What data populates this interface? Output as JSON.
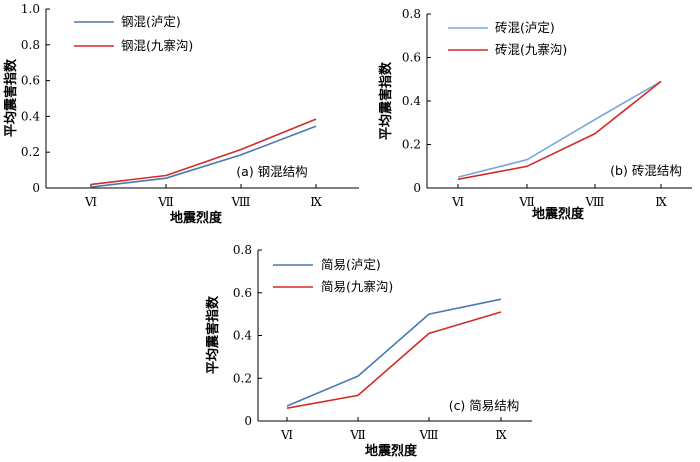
{
  "chart_data": [
    {
      "type": "line",
      "caption": "(a) 钢混结构",
      "xlabel": "地震烈度",
      "ylabel": "平均震害指数",
      "categories": [
        "Ⅵ",
        "Ⅶ",
        "Ⅷ",
        "Ⅸ"
      ],
      "ylim": [
        0,
        1.0
      ],
      "yticks": [
        "0",
        "0.2",
        "0.4",
        "0.6",
        "0.8",
        "1.0"
      ],
      "yticks_values": [
        0,
        0.2,
        0.4,
        0.6,
        0.8,
        1.0
      ],
      "legend_position": "top-left",
      "series": [
        {
          "name": "钢混(泸定)",
          "color": "#4a78b0",
          "values": [
            0.005,
            0.055,
            0.185,
            0.345
          ]
        },
        {
          "name": "钢混(九寨沟)",
          "color": "#d42a2a",
          "values": [
            0.02,
            0.07,
            0.215,
            0.385
          ]
        }
      ]
    },
    {
      "type": "line",
      "caption": "(b) 砖混结构",
      "xlabel": "地震烈度",
      "ylabel": "平均震害指数",
      "categories": [
        "Ⅵ",
        "Ⅶ",
        "Ⅷ",
        "Ⅸ"
      ],
      "ylim": [
        0,
        0.8
      ],
      "yticks": [
        "0",
        "0.2",
        "0.4",
        "0.6",
        "0.8"
      ],
      "yticks_values": [
        0,
        0.2,
        0.4,
        0.6,
        0.8
      ],
      "legend_position": "top-left",
      "series": [
        {
          "name": "砖混(泸定)",
          "color": "#7aa8d8",
          "values": [
            0.05,
            0.13,
            0.315,
            0.49
          ]
        },
        {
          "name": "砖混(九寨沟)",
          "color": "#d42a2a",
          "values": [
            0.04,
            0.1,
            0.25,
            0.49
          ]
        }
      ]
    },
    {
      "type": "line",
      "caption": "(c) 简易结构",
      "xlabel": "地震烈度",
      "ylabel": "平均震害指数",
      "categories": [
        "Ⅵ",
        "Ⅶ",
        "Ⅷ",
        "Ⅸ"
      ],
      "ylim": [
        0,
        0.8
      ],
      "yticks": [
        "0",
        "0.2",
        "0.4",
        "0.6",
        "0.8"
      ],
      "yticks_values": [
        0,
        0.2,
        0.4,
        0.6,
        0.8
      ],
      "legend_position": "top-left",
      "series": [
        {
          "name": "简易(泸定)",
          "color": "#4a78b0",
          "values": [
            0.07,
            0.21,
            0.5,
            0.57
          ]
        },
        {
          "name": "简易(九寨沟)",
          "color": "#d42a2a",
          "values": [
            0.06,
            0.12,
            0.41,
            0.51
          ]
        }
      ]
    }
  ]
}
